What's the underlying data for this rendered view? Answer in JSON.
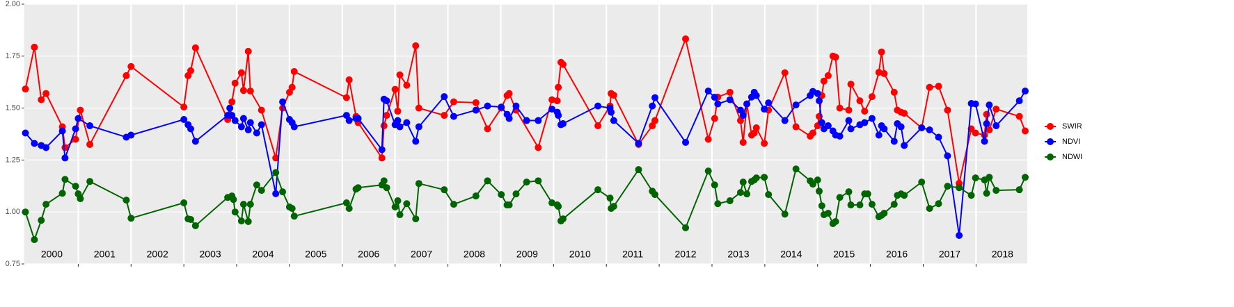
{
  "chart_data": {
    "type": "line",
    "xlim": [
      1999.98,
      2018.97
    ],
    "xticks": [
      2001,
      2002,
      2003,
      2004,
      2005,
      2006,
      2007,
      2008,
      2009,
      2010,
      2011,
      2012,
      2013,
      2014,
      2015,
      2016,
      2017,
      2018
    ],
    "year_labels": [
      "2000",
      "2001",
      "2002",
      "2003",
      "2004",
      "2005",
      "2006",
      "2007",
      "2008",
      "2009",
      "2010",
      "2011",
      "2012",
      "2013",
      "2014",
      "2015",
      "2016",
      "2017",
      "2018"
    ],
    "ylim": [
      0.75,
      2.0
    ],
    "yticks": [
      {
        "value": 0.75,
        "label": "0.75"
      },
      {
        "value": 1.0,
        "label": "1.00"
      },
      {
        "value": 1.25,
        "label": "1.25"
      },
      {
        "value": 1.5,
        "label": "1.50"
      },
      {
        "value": 1.75,
        "label": "1.75"
      },
      {
        "value": 2.0,
        "label": "2.00"
      }
    ],
    "grid": true,
    "legend": "right",
    "series": [
      {
        "name": "SWIR",
        "color": "#ff0000",
        "x": [
          2000.0,
          2000.17,
          2000.3,
          2000.39,
          2000.7,
          2000.75,
          2000.95,
          2001.04,
          2001.22,
          2001.91,
          2002.0,
          2003.0,
          2003.08,
          2003.13,
          2003.22,
          2003.83,
          2003.91,
          2003.97,
          2004.09,
          2004.13,
          2004.22,
          2004.26,
          2004.47,
          2004.74,
          2004.87,
          2005.0,
          2005.05,
          2005.09,
          2006.08,
          2006.13,
          2006.26,
          2006.3,
          2006.75,
          2006.79,
          2006.84,
          2007.0,
          2007.05,
          2007.09,
          2007.22,
          2007.39,
          2007.45,
          2007.93,
          2008.11,
          2008.53,
          2008.75,
          2009.01,
          2009.12,
          2009.16,
          2009.29,
          2009.71,
          2009.97,
          2010.07,
          2010.09,
          2010.14,
          2010.18,
          2010.84,
          2011.07,
          2011.09,
          2011.14,
          2011.61,
          2011.87,
          2011.92,
          2012.5,
          2012.93,
          2013.05,
          2013.11,
          2013.34,
          2013.54,
          2013.59,
          2013.66,
          2013.75,
          2013.8,
          2013.84,
          2013.99,
          2014.07,
          2014.38,
          2014.59,
          2014.86,
          2014.91,
          2015.0,
          2015.03,
          2015.08,
          2015.12,
          2015.2,
          2015.29,
          2015.34,
          2015.42,
          2015.59,
          2015.63,
          2015.8,
          2015.89,
          2016.03,
          2016.16,
          2016.21,
          2016.26,
          2016.45,
          2016.51,
          2016.58,
          2016.64,
          2016.97,
          2017.12,
          2017.29,
          2017.46,
          2017.68,
          2017.91,
          2017.99,
          2018.16,
          2018.2,
          2018.25,
          2018.38,
          2018.82,
          2018.93
        ],
        "values": [
          1.592,
          1.793,
          1.54,
          1.57,
          1.41,
          1.31,
          1.35,
          1.49,
          1.325,
          1.656,
          1.7,
          1.505,
          1.656,
          1.68,
          1.79,
          1.445,
          1.53,
          1.62,
          1.67,
          1.585,
          1.773,
          1.582,
          1.49,
          1.26,
          1.5,
          1.576,
          1.6,
          1.676,
          1.55,
          1.636,
          1.46,
          1.43,
          1.26,
          1.415,
          1.465,
          1.59,
          1.485,
          1.66,
          1.61,
          1.8,
          1.5,
          1.465,
          1.53,
          1.526,
          1.4,
          1.5,
          1.56,
          1.57,
          1.49,
          1.31,
          1.54,
          1.535,
          1.6,
          1.72,
          1.71,
          1.415,
          1.51,
          1.57,
          1.562,
          1.325,
          1.415,
          1.44,
          1.833,
          1.35,
          1.45,
          1.553,
          1.576,
          1.44,
          1.335,
          1.52,
          1.37,
          1.38,
          1.405,
          1.33,
          1.49,
          1.67,
          1.41,
          1.365,
          1.38,
          1.415,
          1.46,
          1.56,
          1.63,
          1.656,
          1.75,
          1.745,
          1.5,
          1.49,
          1.615,
          1.535,
          1.485,
          1.555,
          1.672,
          1.77,
          1.666,
          1.576,
          1.49,
          1.48,
          1.475,
          1.405,
          1.6,
          1.605,
          1.49,
          1.138,
          1.4,
          1.38,
          1.37,
          1.47,
          1.395,
          1.495,
          1.46,
          1.39
        ]
      },
      {
        "name": "NDVI",
        "color": "#0000ff",
        "x": [
          2000.0,
          2000.17,
          2000.3,
          2000.39,
          2000.7,
          2000.75,
          2000.95,
          2001.0,
          2001.22,
          2001.91,
          2002.0,
          2003.0,
          2003.08,
          2003.13,
          2003.22,
          2003.83,
          2003.87,
          2003.91,
          2003.97,
          2004.09,
          2004.13,
          2004.22,
          2004.26,
          2004.38,
          2004.47,
          2004.74,
          2004.87,
          2005.0,
          2005.05,
          2005.09,
          2006.08,
          2006.13,
          2006.26,
          2006.3,
          2006.75,
          2006.79,
          2006.84,
          2007.0,
          2007.05,
          2007.09,
          2007.22,
          2007.39,
          2007.45,
          2007.93,
          2008.11,
          2008.53,
          2008.75,
          2009.01,
          2009.12,
          2009.16,
          2009.29,
          2009.49,
          2009.71,
          2009.97,
          2010.07,
          2010.09,
          2010.14,
          2010.18,
          2010.84,
          2011.07,
          2011.09,
          2011.14,
          2011.61,
          2011.87,
          2011.92,
          2012.5,
          2012.93,
          2013.05,
          2013.11,
          2013.34,
          2013.54,
          2013.59,
          2013.66,
          2013.75,
          2013.8,
          2013.84,
          2013.99,
          2014.07,
          2014.38,
          2014.59,
          2014.86,
          2014.91,
          2015.0,
          2015.03,
          2015.08,
          2015.12,
          2015.2,
          2015.29,
          2015.34,
          2015.42,
          2015.59,
          2015.63,
          2015.8,
          2015.89,
          2016.03,
          2016.16,
          2016.21,
          2016.26,
          2016.45,
          2016.51,
          2016.58,
          2016.64,
          2016.97,
          2017.12,
          2017.29,
          2017.46,
          2017.68,
          2017.91,
          2017.99,
          2018.16,
          2018.2,
          2018.25,
          2018.38,
          2018.82,
          2018.93
        ],
        "values": [
          1.38,
          1.33,
          1.32,
          1.31,
          1.39,
          1.26,
          1.4,
          1.45,
          1.415,
          1.36,
          1.37,
          1.445,
          1.42,
          1.4,
          1.34,
          1.465,
          1.5,
          1.465,
          1.44,
          1.41,
          1.45,
          1.395,
          1.43,
          1.38,
          1.42,
          1.088,
          1.53,
          1.445,
          1.43,
          1.41,
          1.465,
          1.44,
          1.45,
          1.45,
          1.3,
          1.543,
          1.535,
          1.42,
          1.44,
          1.41,
          1.43,
          1.34,
          1.41,
          1.555,
          1.46,
          1.49,
          1.51,
          1.505,
          1.47,
          1.45,
          1.51,
          1.44,
          1.44,
          1.495,
          1.48,
          1.465,
          1.42,
          1.425,
          1.51,
          1.5,
          1.48,
          1.44,
          1.33,
          1.51,
          1.55,
          1.335,
          1.582,
          1.552,
          1.52,
          1.54,
          1.49,
          1.465,
          1.52,
          1.553,
          1.576,
          1.56,
          1.495,
          1.525,
          1.44,
          1.515,
          1.56,
          1.58,
          1.57,
          1.535,
          1.43,
          1.4,
          1.415,
          1.39,
          1.37,
          1.365,
          1.44,
          1.4,
          1.42,
          1.43,
          1.45,
          1.37,
          1.415,
          1.4,
          1.34,
          1.425,
          1.41,
          1.32,
          1.405,
          1.395,
          1.36,
          1.27,
          0.887,
          1.522,
          1.52,
          1.34,
          1.425,
          1.515,
          1.415,
          1.535,
          1.582
        ]
      },
      {
        "name": "NDWI",
        "color": "#006400",
        "x": [
          2000.0,
          2000.17,
          2000.3,
          2000.39,
          2000.7,
          2000.75,
          2000.95,
          2001.0,
          2001.04,
          2001.22,
          2001.91,
          2002.0,
          2003.0,
          2003.08,
          2003.13,
          2003.22,
          2003.83,
          2003.91,
          2003.94,
          2003.97,
          2004.09,
          2004.13,
          2004.22,
          2004.26,
          2004.38,
          2004.47,
          2004.74,
          2004.87,
          2005.0,
          2005.05,
          2005.09,
          2006.08,
          2006.13,
          2006.26,
          2006.3,
          2006.75,
          2006.79,
          2006.84,
          2007.0,
          2007.05,
          2007.09,
          2007.22,
          2007.39,
          2007.45,
          2007.93,
          2008.11,
          2008.53,
          2008.75,
          2009.01,
          2009.12,
          2009.16,
          2009.29,
          2009.49,
          2009.71,
          2009.97,
          2010.07,
          2010.09,
          2010.14,
          2010.18,
          2010.84,
          2011.07,
          2011.09,
          2011.14,
          2011.61,
          2011.87,
          2011.92,
          2012.5,
          2012.93,
          2013.05,
          2013.11,
          2013.34,
          2013.54,
          2013.59,
          2013.66,
          2013.75,
          2013.8,
          2013.84,
          2013.99,
          2014.07,
          2014.38,
          2014.59,
          2014.86,
          2014.91,
          2015.0,
          2015.03,
          2015.08,
          2015.12,
          2015.2,
          2015.29,
          2015.34,
          2015.42,
          2015.59,
          2015.63,
          2015.8,
          2015.89,
          2015.95,
          2016.03,
          2016.16,
          2016.21,
          2016.26,
          2016.45,
          2016.51,
          2016.58,
          2016.64,
          2016.97,
          2017.12,
          2017.29,
          2017.46,
          2017.68,
          2017.91,
          2017.99,
          2018.16,
          2018.2,
          2018.25,
          2018.38,
          2018.82,
          2018.93
        ],
        "values": [
          1.0,
          0.867,
          0.96,
          1.037,
          1.09,
          1.157,
          1.124,
          1.087,
          1.064,
          1.147,
          1.057,
          0.97,
          1.044,
          0.967,
          0.964,
          0.934,
          1.07,
          1.077,
          1.06,
          1.0,
          0.957,
          1.037,
          0.954,
          1.037,
          1.13,
          1.104,
          1.19,
          1.097,
          1.024,
          1.017,
          0.98,
          1.044,
          1.017,
          1.11,
          1.117,
          1.13,
          1.15,
          1.117,
          1.024,
          1.054,
          0.987,
          1.04,
          0.967,
          1.137,
          1.107,
          1.037,
          1.077,
          1.15,
          1.084,
          1.034,
          1.034,
          1.087,
          1.144,
          1.15,
          1.044,
          1.034,
          1.027,
          0.957,
          0.967,
          1.107,
          1.067,
          1.017,
          1.027,
          1.204,
          1.1,
          1.084,
          0.924,
          1.197,
          1.13,
          1.04,
          1.054,
          1.094,
          1.144,
          1.087,
          1.147,
          1.154,
          1.164,
          1.167,
          1.084,
          0.99,
          1.207,
          1.15,
          1.134,
          1.154,
          1.1,
          1.03,
          0.987,
          0.994,
          0.944,
          0.954,
          1.07,
          1.097,
          1.034,
          1.034,
          1.087,
          1.087,
          1.037,
          0.977,
          0.984,
          0.994,
          1.037,
          1.08,
          1.087,
          1.08,
          1.144,
          1.017,
          1.04,
          1.124,
          1.117,
          1.08,
          1.164,
          1.154,
          1.09,
          1.167,
          1.104,
          1.107,
          1.167
        ]
      }
    ]
  }
}
